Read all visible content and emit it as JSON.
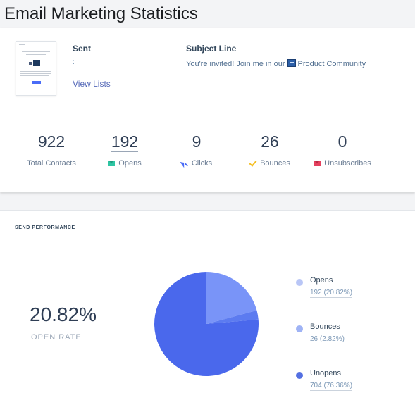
{
  "page": {
    "title": "Email Marketing Statistics"
  },
  "summary": {
    "sent_label": "Sent",
    "sent_value": ":",
    "view_lists": "View Lists",
    "subject_label": "Subject Line",
    "subject_before": "You're invited! Join me in our",
    "subject_after": "Product Community"
  },
  "stats": [
    {
      "value": "922",
      "label": "Total Contacts",
      "icon": ""
    },
    {
      "value": "192",
      "label": "Opens",
      "icon": "envelope-open-icon"
    },
    {
      "value": "9",
      "label": "Clicks",
      "icon": "cursor-click-icon"
    },
    {
      "value": "26",
      "label": "Bounces",
      "icon": "checkmark-icon"
    },
    {
      "value": "0",
      "label": "Unsubscribes",
      "icon": "envelope-unsubscribe-icon"
    }
  ],
  "performance": {
    "section_title": "SEND PERFORMANCE",
    "open_rate": "20.82%",
    "open_rate_label": "OPEN RATE",
    "legend": [
      {
        "name": "Opens",
        "value": "192 (20.82%)",
        "color": "#b9c6f6"
      },
      {
        "name": "Bounces",
        "value": "26 (2.82%)",
        "color": "#9fb3f5"
      },
      {
        "name": "Unopens",
        "value": "704 (76.36%)",
        "color": "#5470e2"
      }
    ]
  },
  "chart_data": {
    "type": "pie",
    "categories": [
      "Opens",
      "Bounces",
      "Unopens"
    ],
    "values": [
      20.82,
      2.82,
      76.36
    ],
    "counts": [
      192,
      26,
      704
    ],
    "colors": [
      "#7994f8",
      "#5c7bf0",
      "#4a68ec"
    ]
  }
}
